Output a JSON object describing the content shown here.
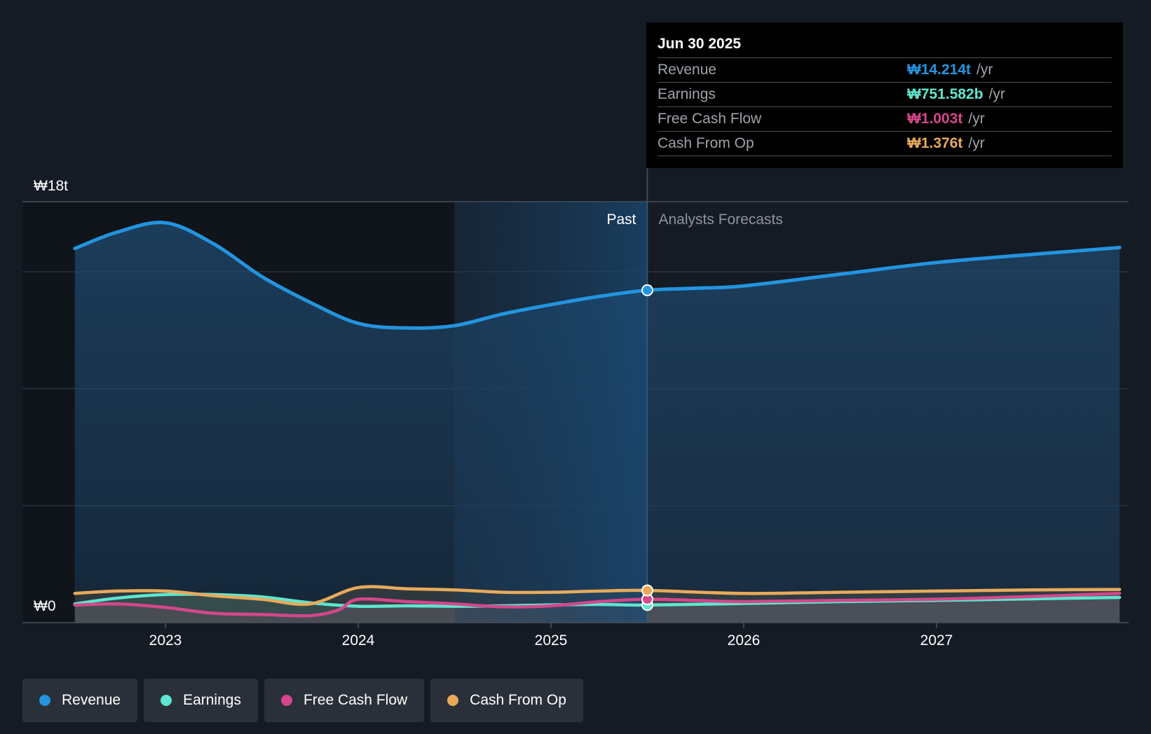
{
  "chart_data": {
    "type": "area",
    "y_axis": {
      "top_label": "₩18t",
      "bottom_label": "₩0",
      "ylim": [
        0,
        18
      ]
    },
    "x_ticks": [
      "2023",
      "2024",
      "2025",
      "2026",
      "2027"
    ],
    "x_range": [
      2022.5,
      2027.95
    ],
    "regions": {
      "past_label": "Past",
      "forecast_label": "Analysts Forecasts",
      "divider_x": 2025.5,
      "shade_start_x": 2024.5
    },
    "series": [
      {
        "name": "Revenue",
        "color": "#2394e0",
        "points": [
          [
            2022.53,
            16.0
          ],
          [
            2022.75,
            16.7
          ],
          [
            2023.0,
            17.1
          ],
          [
            2023.25,
            16.2
          ],
          [
            2023.5,
            14.8
          ],
          [
            2023.75,
            13.7
          ],
          [
            2024.0,
            12.8
          ],
          [
            2024.25,
            12.6
          ],
          [
            2024.5,
            12.7
          ],
          [
            2024.75,
            13.2
          ],
          [
            2025.0,
            13.6
          ],
          [
            2025.25,
            13.95
          ],
          [
            2025.5,
            14.214
          ],
          [
            2025.75,
            14.3
          ],
          [
            2026.0,
            14.4
          ],
          [
            2026.5,
            14.9
          ],
          [
            2027.0,
            15.4
          ],
          [
            2027.5,
            15.75
          ],
          [
            2027.95,
            16.04
          ]
        ]
      },
      {
        "name": "Earnings",
        "color": "#5ee6cf",
        "points": [
          [
            2022.53,
            0.8
          ],
          [
            2022.75,
            1.05
          ],
          [
            2023.0,
            1.2
          ],
          [
            2023.25,
            1.2
          ],
          [
            2023.5,
            1.1
          ],
          [
            2023.75,
            0.85
          ],
          [
            2024.0,
            0.7
          ],
          [
            2024.25,
            0.72
          ],
          [
            2024.5,
            0.7
          ],
          [
            2024.75,
            0.72
          ],
          [
            2025.0,
            0.76
          ],
          [
            2025.25,
            0.78
          ],
          [
            2025.5,
            0.751582
          ],
          [
            2026.0,
            0.82
          ],
          [
            2026.5,
            0.9
          ],
          [
            2027.0,
            0.95
          ],
          [
            2027.5,
            1.02
          ],
          [
            2027.95,
            1.08
          ]
        ]
      },
      {
        "name": "Free Cash Flow",
        "color": "#d4478b",
        "points": [
          [
            2022.53,
            0.75
          ],
          [
            2022.75,
            0.8
          ],
          [
            2023.0,
            0.65
          ],
          [
            2023.25,
            0.4
          ],
          [
            2023.5,
            0.35
          ],
          [
            2023.75,
            0.3
          ],
          [
            2023.9,
            0.55
          ],
          [
            2024.0,
            1.0
          ],
          [
            2024.25,
            0.9
          ],
          [
            2024.5,
            0.8
          ],
          [
            2024.75,
            0.68
          ],
          [
            2025.0,
            0.72
          ],
          [
            2025.25,
            0.9
          ],
          [
            2025.5,
            1.003
          ],
          [
            2025.75,
            0.95
          ],
          [
            2026.0,
            0.9
          ],
          [
            2026.5,
            0.95
          ],
          [
            2027.0,
            1.0
          ],
          [
            2027.5,
            1.12
          ],
          [
            2027.95,
            1.25
          ]
        ]
      },
      {
        "name": "Cash From Op",
        "color": "#e8aa5a",
        "points": [
          [
            2022.53,
            1.25
          ],
          [
            2022.75,
            1.35
          ],
          [
            2023.0,
            1.35
          ],
          [
            2023.25,
            1.15
          ],
          [
            2023.5,
            1.0
          ],
          [
            2023.75,
            0.8
          ],
          [
            2024.0,
            1.5
          ],
          [
            2024.25,
            1.45
          ],
          [
            2024.5,
            1.4
          ],
          [
            2024.75,
            1.3
          ],
          [
            2025.0,
            1.3
          ],
          [
            2025.25,
            1.35
          ],
          [
            2025.5,
            1.376
          ],
          [
            2026.0,
            1.25
          ],
          [
            2026.5,
            1.3
          ],
          [
            2027.0,
            1.35
          ],
          [
            2027.5,
            1.4
          ],
          [
            2027.95,
            1.42
          ]
        ]
      }
    ],
    "marker_x": 2025.5
  },
  "tooltip": {
    "date": "Jun 30 2025",
    "rows": [
      {
        "name": "Revenue",
        "value": "₩14.214t",
        "unit": "/yr",
        "color": "#2394e0"
      },
      {
        "name": "Earnings",
        "value": "₩751.582b",
        "unit": "/yr",
        "color": "#5ee6cf"
      },
      {
        "name": "Free Cash Flow",
        "value": "₩1.003t",
        "unit": "/yr",
        "color": "#d4478b"
      },
      {
        "name": "Cash From Op",
        "value": "₩1.376t",
        "unit": "/yr",
        "color": "#e8aa5a"
      }
    ]
  },
  "legend": [
    {
      "label": "Revenue",
      "color": "#2394e0"
    },
    {
      "label": "Earnings",
      "color": "#5ee6cf"
    },
    {
      "label": "Free Cash Flow",
      "color": "#d4478b"
    },
    {
      "label": "Cash From Op",
      "color": "#e8aa5a"
    }
  ]
}
